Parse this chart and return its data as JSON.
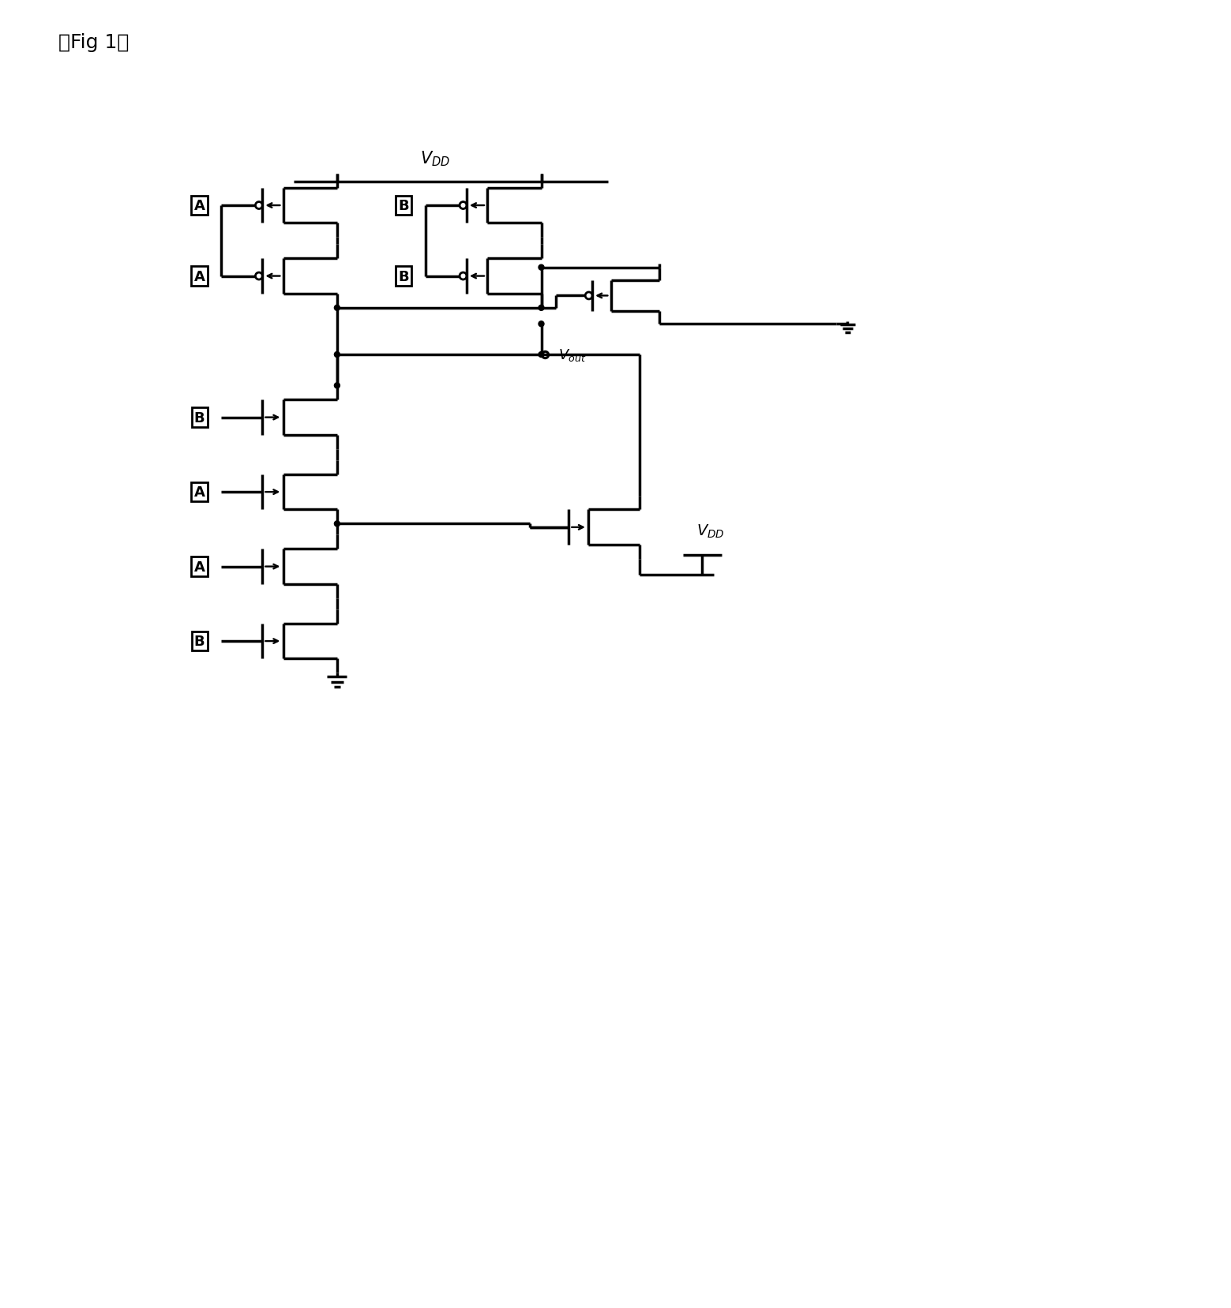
{
  "title": "『Fig 1』",
  "bg": "#ffffff",
  "lc": "#000000",
  "lw": 2.5,
  "fig_w": 15.59,
  "fig_h": 16.58,
  "xlim": [
    0,
    155.9
  ],
  "ylim": [
    0,
    165.8
  ]
}
